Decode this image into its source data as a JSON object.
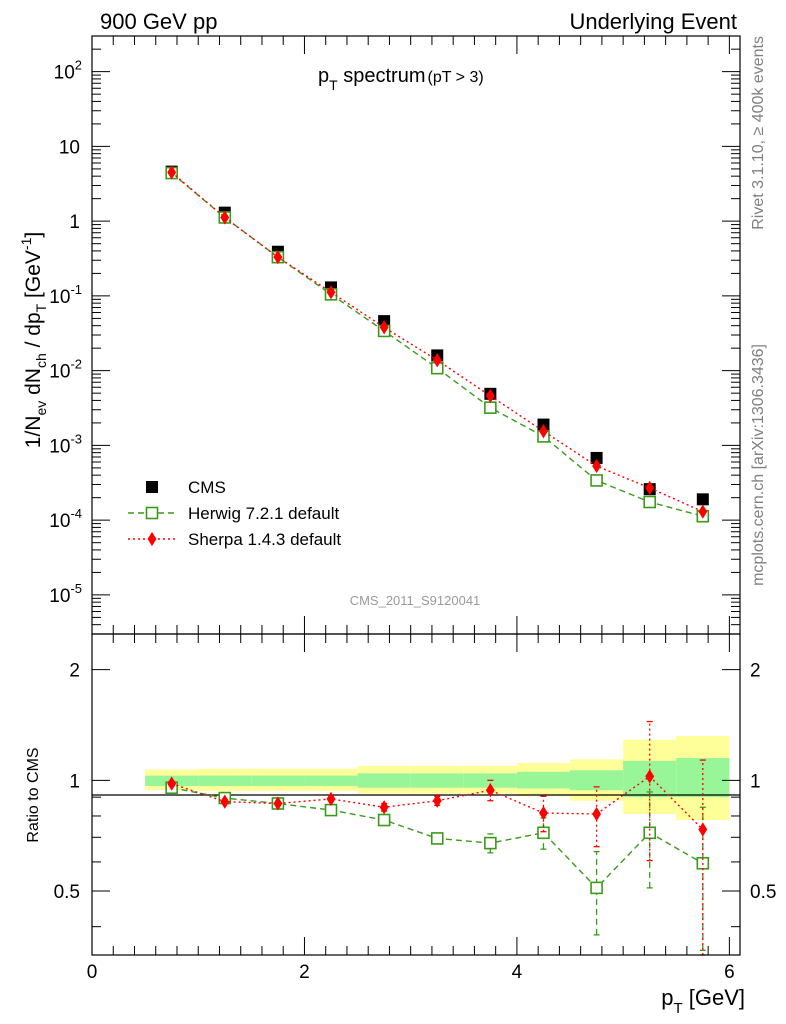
{
  "header": {
    "left": "900 GeV pp",
    "right": "Underlying Event",
    "side_top": "Rivet 3.1.10, ≥ 400k events",
    "side_bottom": "mcplots.cern.ch [arXiv:1306.3436]"
  },
  "chart_data": [
    {
      "type": "scatter",
      "panel": "main",
      "title": "p_T spectrum (pT > 3)",
      "title_main": "p",
      "title_sub": "T",
      "title_rest": " spectrum",
      "title_cut": "(pT >  3)",
      "ylabel": "1/N_ev dN_ch / dp_T [GeV^-1]",
      "xlabel": "",
      "yscale": "log",
      "xlim": [
        0,
        6.1
      ],
      "ylim": [
        3e-06,
        300
      ],
      "watermark": "CMS_2011_S9120041",
      "y_ticks": [
        {
          "v": 1e-05,
          "b": "10",
          "e": "-5"
        },
        {
          "v": 0.0001,
          "b": "10",
          "e": "-4"
        },
        {
          "v": 0.001,
          "b": "10",
          "e": "-3"
        },
        {
          "v": 0.01,
          "b": "10",
          "e": "-2"
        },
        {
          "v": 0.1,
          "b": "10",
          "e": "-1"
        },
        {
          "v": 1,
          "b": "1",
          "e": ""
        },
        {
          "v": 10,
          "b": "10",
          "e": ""
        },
        {
          "v": 100,
          "b": "10",
          "e": "2"
        }
      ],
      "x": [
        0.75,
        1.25,
        1.75,
        2.25,
        2.75,
        3.25,
        3.75,
        4.25,
        4.75,
        5.25,
        5.75
      ],
      "series": [
        {
          "name": "CMS",
          "marker": "filled-square",
          "color": "#000000",
          "values": [
            4.6,
            1.3,
            0.39,
            0.13,
            0.046,
            0.016,
            0.0049,
            0.0019,
            0.00068,
            0.00026,
            0.00019
          ]
        },
        {
          "name": "Herwig 7.2.1 default",
          "marker": "open-square",
          "line": "dashed",
          "color": "#3a9a1a",
          "values": [
            4.4,
            1.12,
            0.33,
            0.105,
            0.034,
            0.0108,
            0.0032,
            0.00132,
            0.00034,
            0.000175,
            0.000113
          ]
        },
        {
          "name": "Sherpa 1.4.3 default",
          "marker": "filled-diamond",
          "line": "dotted",
          "color": "#ff0000",
          "values": [
            4.5,
            1.12,
            0.33,
            0.112,
            0.038,
            0.0138,
            0.0046,
            0.00155,
            0.00053,
            0.00027,
            0.00013
          ]
        }
      ]
    },
    {
      "type": "scatter",
      "panel": "ratio",
      "ylabel": "Ratio to CMS",
      "xlabel": "p_T [GeV]",
      "xlabel_main": "p",
      "xlabel_sub": "T",
      "xlabel_rest": " [GeV]",
      "xlim": [
        0,
        6.1
      ],
      "ylim": [
        0.335,
        2.5
      ],
      "x_ticks": [
        "0",
        "2",
        "4",
        "6"
      ],
      "y_ticks": [
        "0.5",
        "1",
        "2"
      ],
      "reference": 1,
      "band_edges": [
        0.5,
        1.0,
        1.5,
        2.0,
        2.5,
        3.0,
        3.5,
        4.0,
        4.5,
        5.0,
        5.5,
        6.0
      ],
      "band_green": [
        [
          0.965,
          1.03
        ],
        [
          0.965,
          1.03
        ],
        [
          0.965,
          1.03
        ],
        [
          0.965,
          1.03
        ],
        [
          0.955,
          1.045
        ],
        [
          0.955,
          1.045
        ],
        [
          0.955,
          1.045
        ],
        [
          0.95,
          1.055
        ],
        [
          0.94,
          1.065
        ],
        [
          0.9,
          1.13
        ],
        [
          0.9,
          1.15
        ]
      ],
      "band_yellow": [
        [
          0.94,
          1.07
        ],
        [
          0.935,
          1.075
        ],
        [
          0.935,
          1.075
        ],
        [
          0.935,
          1.075
        ],
        [
          0.92,
          1.095
        ],
        [
          0.92,
          1.095
        ],
        [
          0.92,
          1.095
        ],
        [
          0.905,
          1.115
        ],
        [
          0.88,
          1.14
        ],
        [
          0.81,
          1.29
        ],
        [
          0.78,
          1.32
        ]
      ],
      "x": [
        0.75,
        1.25,
        1.75,
        2.25,
        2.75,
        3.25,
        3.75,
        4.25,
        4.75,
        5.25,
        5.75
      ],
      "series": [
        {
          "name": "Herwig 7.2.1 default",
          "marker": "open-square",
          "line": "dashed",
          "color": "#3a9a1a",
          "values": [
            0.955,
            0.895,
            0.865,
            0.83,
            0.78,
            0.695,
            0.675,
            0.72,
            0.51,
            0.72,
            0.595
          ],
          "err": [
            0.015,
            0.01,
            0.01,
            0.01,
            0.01,
            0.015,
            0.04,
            0.07,
            0.13,
            0.21,
            0.25
          ]
        },
        {
          "name": "Sherpa 1.4.3 default",
          "marker": "filled-diamond",
          "line": "dotted",
          "color": "#ff0000",
          "values": [
            0.98,
            0.875,
            0.865,
            0.89,
            0.845,
            0.88,
            0.94,
            0.815,
            0.81,
            1.025,
            0.735
          ],
          "err": [
            0.015,
            0.01,
            0.01,
            0.01,
            0.02,
            0.025,
            0.06,
            0.09,
            0.15,
            0.42,
            0.4
          ]
        }
      ]
    }
  ]
}
